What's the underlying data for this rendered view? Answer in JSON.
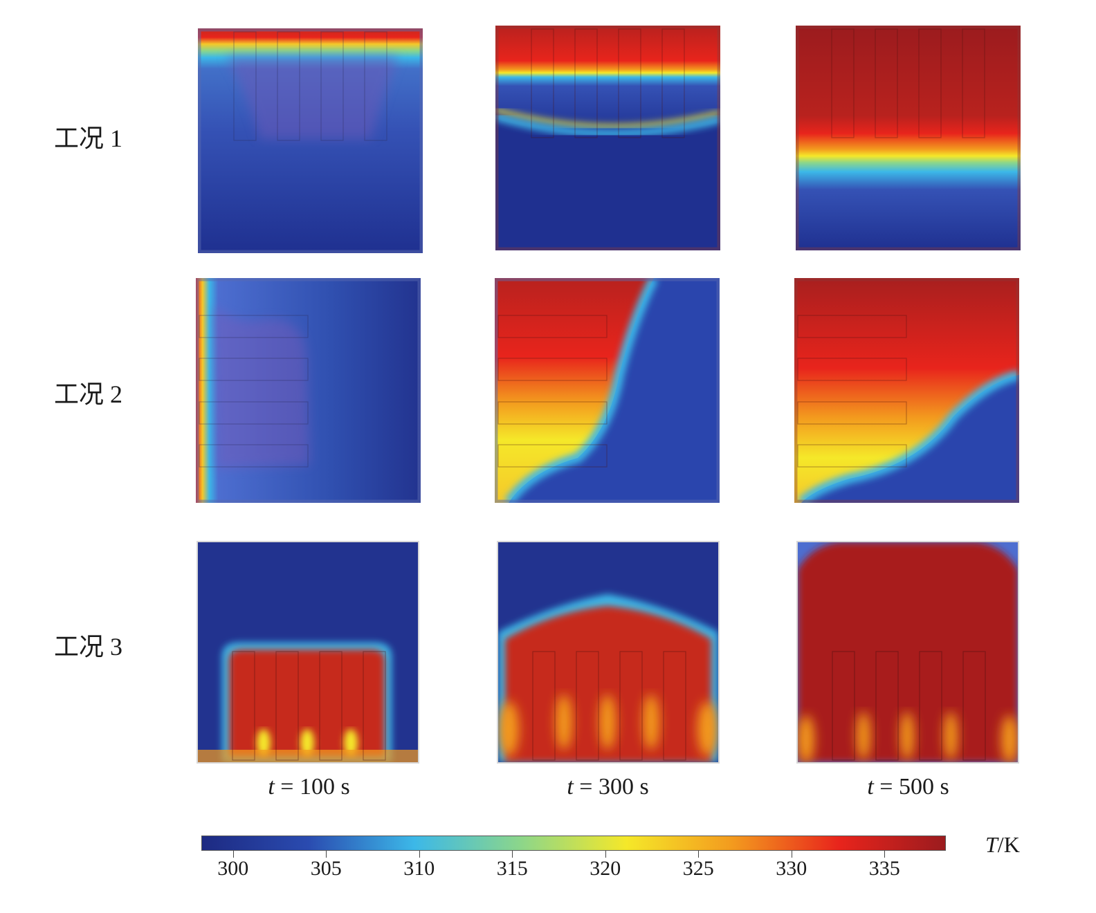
{
  "rows": [
    {
      "label": "工况 1"
    },
    {
      "label": "工况 2"
    },
    {
      "label": "工况 3"
    }
  ],
  "times": [
    {
      "var": "t",
      "rest": " = 100 s"
    },
    {
      "var": "t",
      "rest": " = 300 s"
    },
    {
      "var": "t",
      "rest": " = 500 s"
    }
  ],
  "colorbar": {
    "title_var": "T",
    "title_unit": "/K",
    "ticks": [
      "300",
      "305",
      "310",
      "315",
      "320",
      "325",
      "330",
      "335"
    ],
    "tick_values": [
      300,
      305,
      310,
      315,
      320,
      325,
      330,
      335
    ],
    "range": [
      298.3,
      338.3
    ],
    "colors": [
      "#1d2a82",
      "#2a4bb0",
      "#3cb8e8",
      "#8cd68a",
      "#f5e829",
      "#f39a1e",
      "#e8241c",
      "#9b1b1e"
    ]
  }
}
